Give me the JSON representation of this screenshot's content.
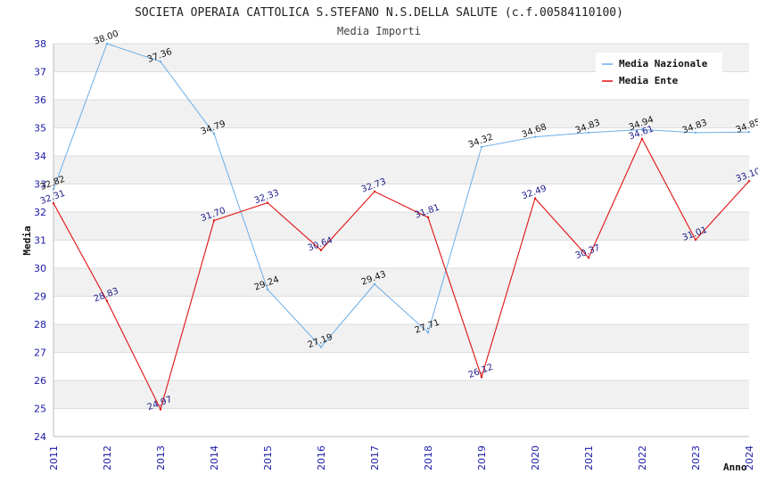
{
  "title": "SOCIETA OPERAIA CATTOLICA S.STEFANO N.S.DELLA SALUTE (c.f.00584110100)",
  "subtitle": "Media Importi",
  "colors": {
    "nazionale": "#6aaee8",
    "ente": "#e01010",
    "tick": "#1a1aa6",
    "band": "#f1f1f1"
  },
  "chart_data": {
    "type": "line",
    "title": "SOCIETA OPERAIA CATTOLICA S.STEFANO N.S.DELLA SALUTE (c.f.00584110100)",
    "subtitle": "Media Importi",
    "xlabel": "Anno",
    "ylabel": "Media",
    "x": [
      "2011",
      "2012",
      "2013",
      "2014",
      "2015",
      "2016",
      "2017",
      "2018",
      "2019",
      "2020",
      "2021",
      "2022",
      "2023",
      "2024"
    ],
    "yticks": [
      "24",
      "25",
      "26",
      "27",
      "28",
      "29",
      "30",
      "31",
      "32",
      "33",
      "34",
      "35",
      "36",
      "37",
      "38"
    ],
    "ylim": [
      24,
      38
    ],
    "grid": true,
    "legend_position": "top-right",
    "series": [
      {
        "name": "Media Nazionale",
        "values": [
          32.82,
          38.0,
          37.36,
          34.79,
          29.24,
          27.19,
          29.43,
          27.71,
          34.32,
          34.68,
          34.83,
          34.94,
          34.83,
          34.85
        ],
        "labels": [
          "32.82",
          "38.00",
          "37.36",
          "34.79",
          "29.24",
          "27.19",
          "29.43",
          "27.71",
          "34.32",
          "34.68",
          "34.83",
          "34.94",
          "34.83",
          "34.85"
        ]
      },
      {
        "name": "Media Ente",
        "values": [
          32.31,
          28.83,
          24.97,
          31.7,
          32.33,
          30.64,
          32.73,
          31.81,
          26.12,
          32.49,
          30.37,
          34.61,
          31.01,
          33.1
        ],
        "labels": [
          "32.31",
          "28.83",
          "24.97",
          "31.70",
          "32.33",
          "30.64",
          "32.73",
          "31.81",
          "26.12",
          "32.49",
          "30.37",
          "34.61",
          "31.01",
          "33.10"
        ]
      }
    ]
  }
}
